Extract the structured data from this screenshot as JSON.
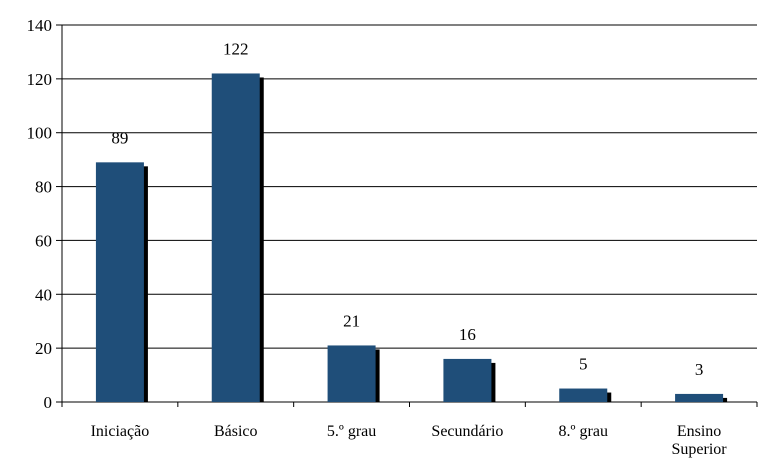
{
  "chart_data": {
    "type": "bar",
    "title": "",
    "xlabel": "",
    "ylabel": "",
    "categories": [
      [
        "Iniciação"
      ],
      [
        "Básico"
      ],
      [
        "5.º grau"
      ],
      [
        "Secundário"
      ],
      [
        "8.º grau"
      ],
      [
        "Ensino",
        "Superior"
      ]
    ],
    "values": [
      89,
      122,
      21,
      16,
      5,
      3
    ],
    "value_labels": [
      "89",
      "122",
      "21",
      "16",
      "5",
      "3"
    ],
    "ylim": [
      0,
      140
    ],
    "yticks": [
      0,
      20,
      40,
      60,
      80,
      100,
      120,
      140
    ],
    "ytick_labels": [
      "0",
      "20",
      "40",
      "60",
      "80",
      "100",
      "120",
      "140"
    ],
    "grid": true,
    "legend": "none",
    "colors": {
      "bar": "#1f4e79",
      "shadow": "#000000",
      "grid": "#000000",
      "axis": "#000000"
    }
  }
}
